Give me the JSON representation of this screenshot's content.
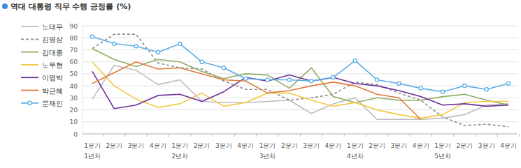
{
  "chart_data": {
    "type": "line",
    "title": "역대 대통령 직무 수행 긍정률 (%)",
    "categories": [
      "1분기",
      "2분기",
      "3분기",
      "4분기",
      "1분기",
      "2분기",
      "3분기",
      "4분기",
      "1분기",
      "2분기",
      "3분기",
      "4분기",
      "1분기",
      "2분기",
      "3분기",
      "4분기",
      "1분기",
      "2분기",
      "3분기",
      "4분기"
    ],
    "category_groups": [
      "1년차",
      "2년차",
      "3년차",
      "4년차",
      "5년차"
    ],
    "ylim": [
      0,
      90
    ],
    "yticks": [
      0,
      10,
      20,
      30,
      40,
      50,
      60,
      70,
      80,
      90
    ],
    "grid": true,
    "legend": "left",
    "series": [
      {
        "name": "노태우",
        "color": "#bdbdbd",
        "line_style": "solid",
        "marker": "none",
        "values": [
          29,
          57,
          53,
          41,
          45,
          27,
          26,
          26,
          27,
          28,
          17,
          25,
          30,
          12,
          12,
          12,
          13,
          16,
          24,
          25
        ]
      },
      {
        "name": "김영삼",
        "color": "#8c8c8c",
        "line_style": "dashed",
        "marker": "none",
        "values": [
          71,
          83,
          83,
          59,
          55,
          54,
          44,
          37,
          37,
          28,
          30,
          33,
          43,
          41,
          34,
          28,
          14,
          7,
          8,
          6
        ]
      },
      {
        "name": "김대중",
        "color": "#8fae62",
        "line_style": "solid",
        "marker": "none",
        "values": [
          71,
          62,
          56,
          62,
          60,
          52,
          46,
          50,
          49,
          38,
          55,
          31,
          26,
          30,
          28,
          28,
          31,
          33,
          28,
          24
        ]
      },
      {
        "name": "노무현",
        "color": "#f5c842",
        "line_style": "solid",
        "marker": "none",
        "values": [
          60,
          40,
          29,
          22,
          25,
          34,
          23,
          26,
          34,
          34,
          28,
          23,
          26,
          20,
          16,
          13,
          16,
          26,
          27,
          27
        ]
      },
      {
        "name": "이명박",
        "color": "#6b2f99",
        "line_style": "solid",
        "marker": "none",
        "values": [
          52,
          21,
          24,
          32,
          33,
          27,
          35,
          47,
          44,
          49,
          44,
          47,
          42,
          40,
          36,
          31,
          24,
          25,
          23,
          24
        ]
      },
      {
        "name": "박근혜",
        "color": "#e07b39",
        "line_style": "solid",
        "marker": "none",
        "values": [
          42,
          51,
          60,
          54,
          55,
          50,
          45,
          44,
          34,
          36,
          40,
          43,
          40,
          33,
          30,
          12,
          null,
          null,
          null,
          null
        ]
      },
      {
        "name": "문재인",
        "color": "#5aaee8",
        "line_style": "solid",
        "marker": "circle",
        "values": [
          81,
          75,
          73,
          68,
          75,
          60,
          55,
          46,
          45,
          45,
          44,
          47,
          61,
          45,
          42,
          38,
          35,
          40,
          37,
          42
        ]
      }
    ]
  }
}
